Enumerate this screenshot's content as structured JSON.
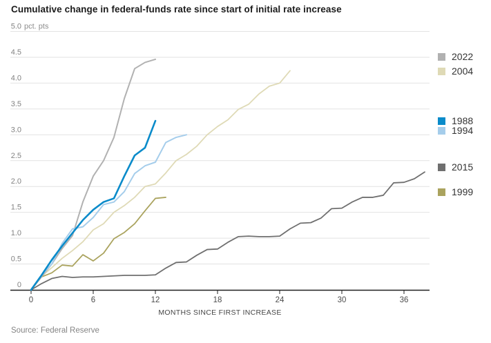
{
  "title": "Cumulative change in federal-funds rate since start of initial rate increase",
  "source": "Source: Federal Reserve",
  "chart_data": {
    "type": "line",
    "title": "Cumulative change in federal-funds rate since start of initial rate increase",
    "xlabel": "MONTHS SINCE FIRST INCREASE",
    "ylabel": "",
    "y_unit": "pct. pts",
    "xlim": [
      0,
      38.5
    ],
    "ylim": [
      0,
      5.0
    ],
    "grid": true,
    "legend_position": "right",
    "x_ticks": [
      0,
      6,
      12,
      18,
      24,
      30,
      36
    ],
    "x_tick_labels": [
      "0",
      "6",
      "12",
      "18",
      "24",
      "30",
      "36"
    ],
    "y_ticks": [
      0,
      0.5,
      1.0,
      1.5,
      2.0,
      2.5,
      3.0,
      3.5,
      4.0,
      4.5,
      5.0
    ],
    "y_tick_labels": [
      "0",
      "0.5",
      "1.0",
      "1.5",
      "2.0",
      "2.5",
      "3.0",
      "3.5",
      "4.0",
      "4.5",
      "5.0"
    ],
    "x_step_months": 1,
    "series": [
      {
        "name": "2022",
        "color": "#b1b1b1",
        "months": [
          0,
          1,
          2,
          3,
          4,
          5,
          6,
          7,
          8,
          9,
          10,
          11,
          12
        ],
        "values": [
          0,
          0.25,
          0.5,
          0.8,
          1.05,
          1.7,
          2.2,
          2.5,
          2.95,
          3.7,
          4.28,
          4.4,
          4.46
        ]
      },
      {
        "name": "2004",
        "color": "#dfdab6",
        "months": [
          0,
          1,
          2,
          3,
          4,
          5,
          6,
          7,
          8,
          9,
          10,
          11,
          12,
          13,
          14,
          15,
          16,
          17,
          18,
          19,
          20,
          21,
          22,
          23,
          24,
          25
        ],
        "values": [
          0,
          0.26,
          0.43,
          0.61,
          0.76,
          0.93,
          1.16,
          1.28,
          1.5,
          1.63,
          1.79,
          2.0,
          2.05,
          2.26,
          2.5,
          2.62,
          2.78,
          3.0,
          3.16,
          3.29,
          3.49,
          3.59,
          3.79,
          3.94,
          4.0,
          4.24
        ]
      },
      {
        "name": "1988",
        "color": "#0a8bca",
        "months": [
          0,
          1,
          2,
          3,
          4,
          5,
          6,
          7,
          8,
          9,
          10,
          11,
          12
        ],
        "values": [
          0,
          0.28,
          0.58,
          0.85,
          1.1,
          1.35,
          1.55,
          1.7,
          1.77,
          2.2,
          2.6,
          2.75,
          3.27
        ]
      },
      {
        "name": "1994",
        "color": "#a5cdeb",
        "months": [
          0,
          1,
          2,
          3,
          4,
          5,
          6,
          7,
          8,
          9,
          10,
          11,
          12,
          13,
          14,
          15
        ],
        "values": [
          0,
          0.28,
          0.5,
          0.9,
          1.18,
          1.22,
          1.4,
          1.65,
          1.7,
          1.9,
          2.25,
          2.4,
          2.47,
          2.85,
          2.95,
          3.0
        ]
      },
      {
        "name": "2015",
        "color": "#6f6f6f",
        "months": [
          0,
          1,
          2,
          3,
          4,
          5,
          6,
          7,
          8,
          9,
          10,
          11,
          12,
          13,
          14,
          15,
          16,
          17,
          18,
          19,
          20,
          21,
          22,
          23,
          24,
          25,
          26,
          27,
          28,
          29,
          30,
          31,
          32,
          33,
          34,
          35,
          36,
          37,
          38
        ],
        "values": [
          0,
          0.12,
          0.22,
          0.26,
          0.24,
          0.25,
          0.25,
          0.26,
          0.27,
          0.28,
          0.28,
          0.28,
          0.29,
          0.42,
          0.53,
          0.54,
          0.67,
          0.78,
          0.79,
          0.92,
          1.03,
          1.04,
          1.03,
          1.03,
          1.04,
          1.18,
          1.29,
          1.3,
          1.39,
          1.57,
          1.58,
          1.7,
          1.79,
          1.79,
          1.83,
          2.07,
          2.08,
          2.15,
          2.28
        ]
      },
      {
        "name": "1999",
        "color": "#aaa35e",
        "months": [
          0,
          1,
          2,
          3,
          4,
          5,
          6,
          7,
          8,
          9,
          10,
          11,
          12,
          13
        ],
        "values": [
          0,
          0.25,
          0.33,
          0.48,
          0.46,
          0.68,
          0.56,
          0.71,
          0.99,
          1.11,
          1.28,
          1.53,
          1.77,
          1.79
        ]
      }
    ]
  }
}
